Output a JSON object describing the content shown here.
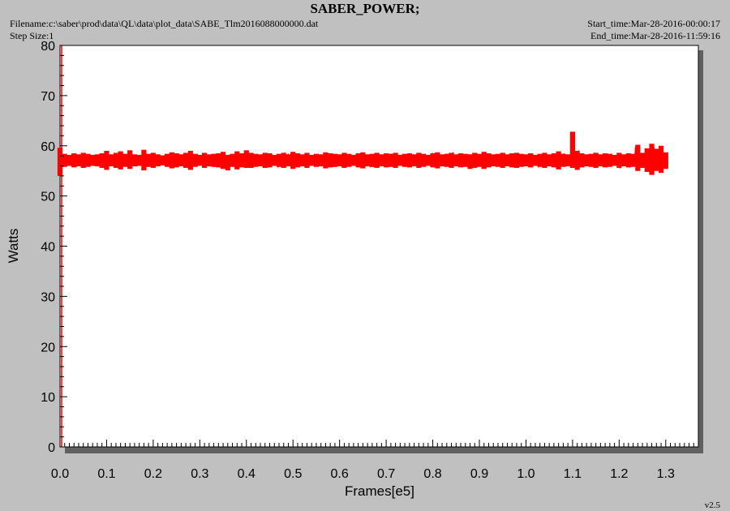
{
  "header": {
    "title": "SABER_POWER;",
    "filename": "Filename:c:\\saber\\prod\\data\\QL\\data\\plot_data\\SABE_Tlm2016088000000.dat",
    "step_size": "Step Size:1",
    "start_time": "Start_time:Mar-28-2016-00:00:17",
    "end_time": "End_time:Mar-28-2016-11:59:16",
    "version": "v2.5"
  },
  "colors": {
    "background": "#c0c0c0",
    "plot_area": "#ffffff",
    "series": "#ff0000",
    "axis": "#000000",
    "shadow": "#606060"
  },
  "chart_data": {
    "type": "line",
    "title": "SABER_POWER;",
    "xlabel": "Frames[e5]",
    "ylabel": "Watts",
    "xlim": [
      0.0,
      1.37
    ],
    "ylim": [
      0,
      80
    ],
    "x_ticks": [
      "0.0",
      "0.1",
      "0.2",
      "0.3",
      "0.4",
      "0.5",
      "0.6",
      "0.7",
      "0.8",
      "0.9",
      "1.0",
      "1.1",
      "1.2",
      "1.3"
    ],
    "y_ticks": [
      "0",
      "10",
      "20",
      "30",
      "40",
      "50",
      "60",
      "70",
      "80"
    ],
    "grid": false,
    "series": [
      {
        "x_range": [
          0.0,
          1.3
        ],
        "x_step": 0.01,
        "upper": [
          59.6,
          58.4,
          58.2,
          58.5,
          58.3,
          58.6,
          58.4,
          58.2,
          58.3,
          58.5,
          59.0,
          58.3,
          58.6,
          58.9,
          58.4,
          59.1,
          58.3,
          58.2,
          59.2,
          58.4,
          58.6,
          58.3,
          58.1,
          58.4,
          58.7,
          58.5,
          58.3,
          58.6,
          59.0,
          58.4,
          58.2,
          58.6,
          58.3,
          58.4,
          58.5,
          58.8,
          58.2,
          58.4,
          58.9,
          58.5,
          59.1,
          58.6,
          58.4,
          58.3,
          58.6,
          58.5,
          58.2,
          58.4,
          58.6,
          58.3,
          58.8,
          58.5,
          58.3,
          58.6,
          58.2,
          58.4,
          58.3,
          58.7,
          58.5,
          58.4,
          58.3,
          58.6,
          58.4,
          58.2,
          58.5,
          58.7,
          58.3,
          58.4,
          58.6,
          58.3,
          58.5,
          58.4,
          58.6,
          58.2,
          58.4,
          58.5,
          58.3,
          58.6,
          58.4,
          58.2,
          58.5,
          58.7,
          58.3,
          58.4,
          58.6,
          58.3,
          58.5,
          58.4,
          58.3,
          58.6,
          58.4,
          58.8,
          58.5,
          58.3,
          58.4,
          58.6,
          58.3,
          58.5,
          58.6,
          58.4,
          58.3,
          58.5,
          58.2,
          58.4,
          58.6,
          58.3,
          58.5,
          58.9,
          58.4,
          58.3,
          62.8,
          59.0,
          58.5,
          58.3,
          58.4,
          58.6,
          58.3,
          58.5,
          58.4,
          58.2,
          58.6,
          58.3,
          58.5,
          58.4,
          60.2,
          58.6,
          59.5,
          60.4,
          59.4,
          60.0,
          58.7
        ],
        "lower": [
          54.0,
          55.8,
          56.0,
          55.7,
          55.9,
          55.6,
          55.8,
          56.0,
          55.9,
          55.6,
          55.2,
          55.9,
          55.6,
          55.3,
          55.8,
          55.4,
          55.9,
          56.0,
          55.1,
          55.8,
          55.6,
          55.9,
          56.1,
          55.8,
          55.5,
          55.7,
          55.9,
          55.6,
          55.2,
          55.8,
          56.0,
          55.6,
          55.9,
          55.8,
          55.7,
          55.4,
          55.1,
          55.8,
          55.3,
          55.7,
          55.6,
          55.6,
          55.8,
          55.9,
          55.6,
          55.7,
          56.0,
          55.8,
          55.6,
          55.9,
          55.4,
          55.7,
          55.9,
          55.6,
          56.0,
          55.8,
          55.9,
          55.5,
          55.7,
          55.8,
          55.9,
          55.6,
          55.8,
          56.0,
          55.7,
          55.5,
          55.9,
          55.8,
          55.6,
          55.9,
          55.7,
          55.8,
          55.6,
          56.0,
          55.8,
          55.7,
          55.9,
          55.6,
          55.8,
          56.0,
          55.7,
          55.5,
          55.9,
          55.8,
          55.6,
          55.9,
          55.7,
          55.8,
          55.4,
          55.6,
          55.8,
          55.4,
          55.7,
          55.9,
          55.8,
          55.6,
          55.9,
          55.7,
          55.6,
          55.8,
          55.9,
          55.7,
          56.0,
          55.8,
          55.6,
          55.9,
          55.7,
          55.3,
          55.8,
          55.9,
          55.6,
          55.2,
          55.7,
          55.9,
          55.8,
          55.6,
          55.9,
          55.7,
          55.8,
          56.0,
          55.6,
          55.9,
          55.7,
          55.8,
          55.0,
          55.6,
          54.8,
          54.2,
          55.0,
          54.6,
          55.4
        ],
        "mean": 57.0
      }
    ]
  }
}
